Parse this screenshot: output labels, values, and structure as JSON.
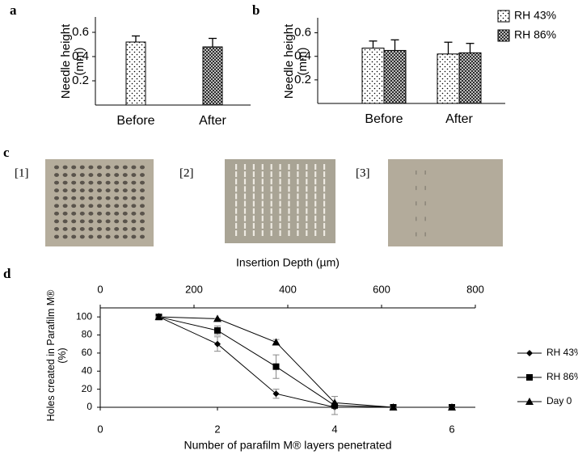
{
  "chart_data": [
    {
      "type": "bar",
      "title": "a",
      "ylabel": "Needle height (mm)",
      "categories": [
        "Before",
        "After"
      ],
      "values": [
        0.52,
        0.48
      ],
      "errors": [
        0.05,
        0.07
      ],
      "patterns": [
        "dots",
        "crosshatch"
      ],
      "ylim": [
        0,
        0.7
      ],
      "yticks": [
        0.2,
        0.4,
        0.6
      ]
    },
    {
      "type": "bar",
      "title": "b",
      "ylabel": "Needle height (mm)",
      "categories": [
        "Before",
        "After"
      ],
      "series": [
        {
          "name": "RH 43%",
          "pattern": "dots",
          "values": [
            0.47,
            0.42
          ],
          "errors": [
            0.06,
            0.1
          ]
        },
        {
          "name": "RH 86%",
          "pattern": "crosshatch",
          "values": [
            0.45,
            0.43
          ],
          "errors": [
            0.09,
            0.08
          ]
        }
      ],
      "ylim": [
        0,
        0.7
      ],
      "yticks": [
        0.2,
        0.4,
        0.6
      ],
      "legend": "top-right"
    },
    {
      "type": "line",
      "title": "d",
      "xlabel": "Number of parafilm M® layers penetrated",
      "ylabel": "Holes created in Parafilm M® (%)",
      "x2label": "Insertion Depth (µm)",
      "x": [
        1,
        2,
        3,
        4,
        5,
        6
      ],
      "series": [
        {
          "name": "RH 43%",
          "marker": "diamond",
          "color": "#000000",
          "values": [
            100,
            70,
            15,
            0,
            0,
            0
          ],
          "errors": [
            0,
            8,
            5,
            0,
            0,
            0
          ]
        },
        {
          "name": "RH 86%",
          "marker": "square",
          "color": "#000000",
          "values": [
            100,
            85,
            45,
            2,
            0,
            0
          ],
          "errors": [
            0,
            5,
            13,
            10,
            0,
            0
          ]
        },
        {
          "name": "Day 0",
          "marker": "triangle",
          "color": "#000000",
          "values": [
            100,
            98,
            72,
            5,
            0,
            0
          ],
          "errors": [
            0,
            0,
            3,
            0,
            0,
            0
          ]
        }
      ],
      "xlim": [
        0,
        6.4
      ],
      "xticks": [
        0,
        2,
        4,
        6
      ],
      "x2lim": [
        0,
        800
      ],
      "x2ticks": [
        0,
        200,
        400,
        600,
        800
      ],
      "ylim": [
        0,
        110
      ],
      "yticks": [
        0,
        20,
        40,
        60,
        80,
        100
      ],
      "legend": "right"
    }
  ],
  "images": {
    "label": "c",
    "items": [
      "[1]",
      "[2]",
      "[3]"
    ]
  }
}
